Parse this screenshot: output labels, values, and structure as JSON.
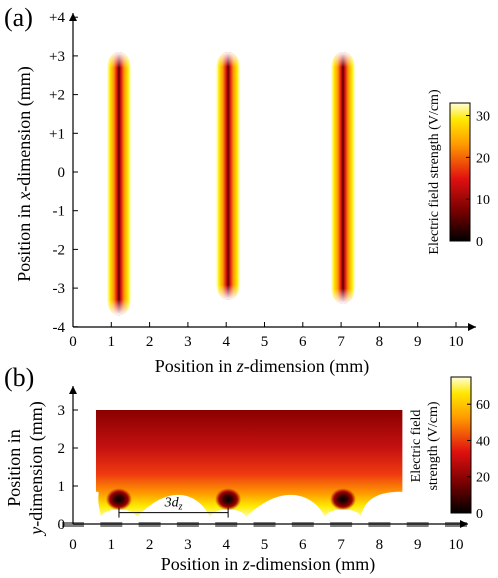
{
  "colors": {
    "background": "#ffffff",
    "axis": "#000000",
    "electrode": "#7f7f7f"
  },
  "chart_data": [
    {
      "panel": "(a)",
      "type": "heatmap",
      "xlabel_prefix": "Position in ",
      "xlabel_var": "z",
      "xlabel_suffix": "-dimension (mm)",
      "ylabel_prefix": "Position in ",
      "ylabel_var": "x",
      "ylabel_suffix": "-dimension (mm)",
      "xlim": [
        0,
        10.5
      ],
      "ylim": [
        -4,
        4.4
      ],
      "x_ticks": [
        "0",
        "1",
        "2",
        "3",
        "4",
        "5",
        "6",
        "7",
        "8",
        "9",
        "10"
      ],
      "y_ticks": [
        "-4",
        "-3",
        "-2",
        "-1",
        "0",
        "+1",
        "+2",
        "+3",
        "+4"
      ],
      "hotspots": [
        {
          "z": 1.2,
          "x_min": -3.7,
          "x_max": 3.1,
          "peak": 33
        },
        {
          "z": 4.05,
          "x_min": -3.3,
          "x_max": 3.1,
          "peak": 33
        },
        {
          "z": 7.05,
          "x_min": -3.4,
          "x_max": 3.1,
          "peak": 33
        }
      ],
      "colorbar": {
        "label": "Electric field strength (V/cm)",
        "range": [
          0,
          33
        ],
        "ticks": [
          "0",
          "10",
          "20",
          "30"
        ]
      }
    },
    {
      "panel": "(b)",
      "type": "heatmap",
      "xlabel_prefix": "Position in ",
      "xlabel_var": "z",
      "xlabel_suffix": "-dimension (mm)",
      "ylabel_line1": "Position in",
      "ylabel_var": "y",
      "ylabel_suffix": "-dimension (mm)",
      "xlim": [
        0,
        10.5
      ],
      "ylim": [
        0,
        3.4
      ],
      "x_ticks": [
        "0",
        "1",
        "2",
        "3",
        "4",
        "5",
        "6",
        "7",
        "8",
        "9",
        "10"
      ],
      "y_ticks": [
        "0",
        "1",
        "2",
        "3"
      ],
      "field_extent": {
        "z_min": 0.6,
        "z_max": 8.6,
        "y_top": 3.0
      },
      "hotspots": [
        {
          "z": 1.2,
          "y": 0.65
        },
        {
          "z": 4.05,
          "y": 0.65
        },
        {
          "z": 7.05,
          "y": 0.65
        }
      ],
      "electrodes_z": [
        0,
        1,
        2,
        3,
        4,
        5,
        6,
        7,
        8,
        9,
        10
      ],
      "annotation": {
        "text": "3d",
        "sub": "z",
        "z_from": 1.2,
        "z_to": 4.05,
        "y": 0.3
      },
      "colorbar": {
        "label_line1": "Electric field",
        "label_line2": "strength (V/cm)",
        "range": [
          0,
          75
        ],
        "ticks": [
          "0",
          "20",
          "40",
          "60"
        ]
      }
    }
  ]
}
